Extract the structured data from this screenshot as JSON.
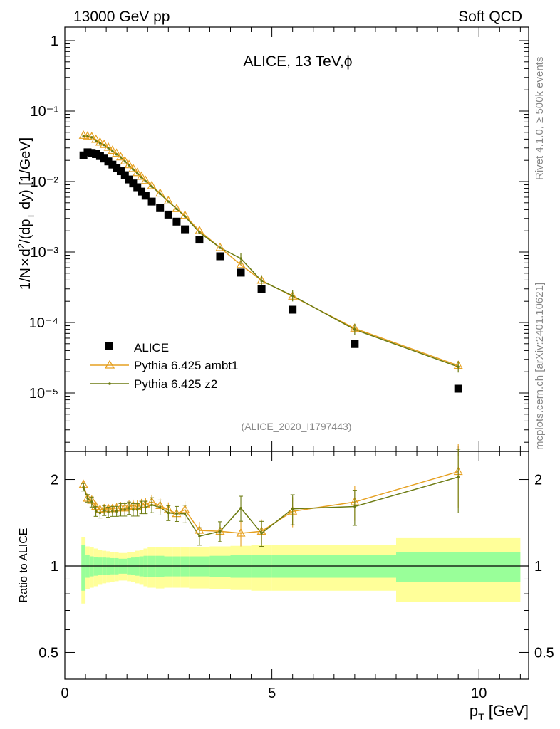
{
  "header": {
    "left": "13000 GeV pp",
    "right": "Soft QCD"
  },
  "side": {
    "rivet": "Rivet 4.1.0, ≥ 500k events",
    "source": "mcplots.cern.ch [arXiv:2401.10621]"
  },
  "colors": {
    "data": "#000000",
    "ambt1": "#e6a020",
    "z2": "#6b7a10",
    "band_inner": "#99ff99",
    "band_outer": "#ffff99"
  },
  "chart_data": [
    {
      "type": "scatter",
      "title": "ALICE, 13 TeV,ϕ",
      "ylabel": "1/N × d²/(dp_T dy) [1/GeV]",
      "xlabel": "",
      "xlim": [
        0,
        11.2
      ],
      "ylim": [
        1e-06,
        2
      ],
      "yscale": "log",
      "ytick_labels": [
        "1",
        "10⁻¹",
        "10⁻²",
        "10⁻³",
        "10⁻⁴",
        "10⁻⁵"
      ],
      "legend": [
        "ALICE",
        "Pythia 6.425 ambt1",
        "Pythia 6.425 z2"
      ],
      "legend_position": "bottom-left",
      "analysis_tag": "(ALICE_2020_I1797443)",
      "x": [
        0.45,
        0.55,
        0.65,
        0.75,
        0.85,
        0.95,
        1.05,
        1.15,
        1.25,
        1.35,
        1.45,
        1.55,
        1.65,
        1.75,
        1.85,
        1.95,
        2.1,
        2.3,
        2.5,
        2.7,
        2.9,
        3.25,
        3.75,
        4.25,
        4.75,
        5.5,
        7.0,
        9.5
      ],
      "series": [
        {
          "name": "ALICE",
          "values": [
            0.0235,
            0.026,
            0.0255,
            0.0245,
            0.023,
            0.0212,
            0.0193,
            0.0174,
            0.0157,
            0.014,
            0.0123,
            0.0107,
            0.0094,
            0.0083,
            0.0072,
            0.0063,
            0.0052,
            0.0042,
            0.0034,
            0.0027,
            0.0021,
            0.0015,
            0.00087,
            0.00051,
            0.0003,
            0.000152,
            4.95e-05,
            1.15e-05
          ]
        },
        {
          "name": "Pythia 6.425 ambt1",
          "values": [
            0.045,
            0.044,
            0.043,
            0.0395,
            0.036,
            0.0334,
            0.0305,
            0.0275,
            0.025,
            0.0222,
            0.0195,
            0.0172,
            0.0152,
            0.0133,
            0.0118,
            0.0103,
            0.0087,
            0.0068,
            0.0053,
            0.0041,
            0.0033,
            0.002,
            0.00115,
            0.00066,
            0.000395,
            0.000235,
            8.25e-05,
            2.45e-05
          ]
        },
        {
          "name": "Pythia 6.425 z2",
          "values": [
            0.044,
            0.044,
            0.0425,
            0.038,
            0.035,
            0.033,
            0.0298,
            0.027,
            0.0243,
            0.022,
            0.0193,
            0.017,
            0.0148,
            0.013,
            0.0115,
            0.0101,
            0.0085,
            0.0067,
            0.0052,
            0.0041,
            0.0032,
            0.0019,
            0.00115,
            0.00081,
            0.00039,
            0.00024,
            7.95e-05,
            2.35e-05
          ]
        }
      ]
    },
    {
      "type": "line",
      "title": "",
      "xlabel": "p_T [GeV]",
      "ylabel": "Ratio to ALICE",
      "xlim": [
        0,
        11.2
      ],
      "ylim": [
        0.4,
        2.4
      ],
      "yscale": "log",
      "ytick_labels": [
        "0.5",
        "1",
        "2"
      ],
      "xtick_labels": [
        "0",
        "5",
        "10"
      ],
      "x": [
        0.45,
        0.55,
        0.65,
        0.75,
        0.85,
        0.95,
        1.05,
        1.15,
        1.25,
        1.35,
        1.45,
        1.55,
        1.65,
        1.75,
        1.85,
        1.95,
        2.1,
        2.3,
        2.5,
        2.7,
        2.9,
        3.25,
        3.75,
        4.25,
        4.75,
        5.5,
        7.0,
        9.5
      ],
      "series": [
        {
          "name": "Pythia 6.425 ambt1",
          "values": [
            1.92,
            1.72,
            1.69,
            1.61,
            1.57,
            1.58,
            1.58,
            1.58,
            1.59,
            1.59,
            1.59,
            1.61,
            1.62,
            1.61,
            1.63,
            1.64,
            1.67,
            1.62,
            1.57,
            1.52,
            1.57,
            1.33,
            1.32,
            1.3,
            1.32,
            1.55,
            1.67,
            2.13
          ]
        },
        {
          "name": "Pythia 6.425 z2",
          "values": [
            1.88,
            1.72,
            1.67,
            1.55,
            1.53,
            1.56,
            1.54,
            1.55,
            1.55,
            1.57,
            1.57,
            1.59,
            1.57,
            1.57,
            1.6,
            1.6,
            1.63,
            1.6,
            1.53,
            1.52,
            1.52,
            1.27,
            1.32,
            1.59,
            1.3,
            1.58,
            1.61,
            2.04
          ]
        }
      ],
      "reference_line": 1,
      "band_edges": [
        0.4,
        0.5,
        0.6,
        0.7,
        0.8,
        0.9,
        1.0,
        1.1,
        1.2,
        1.3,
        1.4,
        1.5,
        1.6,
        1.7,
        1.8,
        1.9,
        2.0,
        2.2,
        2.4,
        2.6,
        2.8,
        3.0,
        3.5,
        4.0,
        4.5,
        5.0,
        6.0,
        8.0,
        11.0
      ],
      "band_inner": [
        0.18,
        0.09,
        0.08,
        0.075,
        0.07,
        0.07,
        0.068,
        0.065,
        0.065,
        0.06,
        0.06,
        0.065,
        0.07,
        0.075,
        0.08,
        0.085,
        0.085,
        0.085,
        0.08,
        0.08,
        0.08,
        0.08,
        0.085,
        0.09,
        0.09,
        0.09,
        0.09,
        0.12
      ],
      "band_outer": [
        0.26,
        0.17,
        0.16,
        0.15,
        0.14,
        0.13,
        0.125,
        0.12,
        0.115,
        0.11,
        0.11,
        0.115,
        0.12,
        0.13,
        0.14,
        0.15,
        0.16,
        0.165,
        0.16,
        0.16,
        0.16,
        0.165,
        0.17,
        0.175,
        0.18,
        0.18,
        0.18,
        0.25
      ]
    }
  ]
}
